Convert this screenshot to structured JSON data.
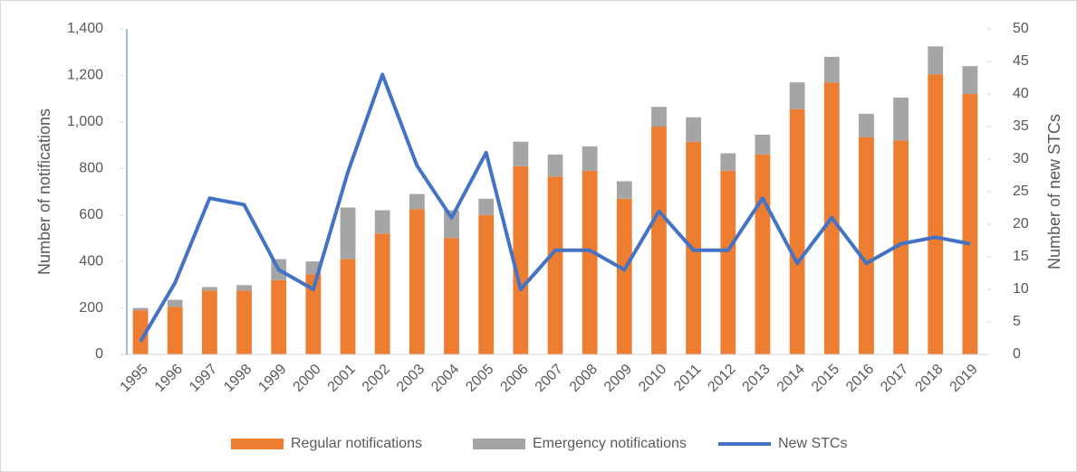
{
  "chart_data": {
    "type": "bar",
    "categories": [
      "1995",
      "1996",
      "1997",
      "1998",
      "1999",
      "2000",
      "2001",
      "2002",
      "2003",
      "2004",
      "2005",
      "2006",
      "2007",
      "2008",
      "2009",
      "2010",
      "2011",
      "2012",
      "2013",
      "2014",
      "2015",
      "2016",
      "2017",
      "2018",
      "2019"
    ],
    "series": [
      {
        "name": "Regular notifications",
        "color": "#ed7d31",
        "stack": true,
        "values": [
          190,
          205,
          275,
          275,
          320,
          345,
          410,
          520,
          625,
          500,
          600,
          810,
          765,
          790,
          670,
          980,
          915,
          790,
          860,
          1055,
          1170,
          935,
          920,
          1205,
          1120
        ]
      },
      {
        "name": "Emergency notifications",
        "color": "#a5a5a5",
        "stack": true,
        "values": [
          10,
          30,
          15,
          23,
          90,
          55,
          222,
          100,
          65,
          120,
          70,
          105,
          95,
          105,
          75,
          85,
          105,
          75,
          85,
          115,
          110,
          100,
          185,
          120,
          120
        ]
      },
      {
        "name": "New STCs",
        "color": "#4472c4",
        "type": "line",
        "axis": "y2",
        "values": [
          2,
          11,
          24,
          23,
          13,
          10,
          28,
          43,
          29,
          21,
          31,
          10,
          16,
          16,
          13,
          22,
          16,
          16,
          24,
          14,
          21,
          14,
          17,
          18,
          17
        ]
      }
    ],
    "ylabel": "Number of notifications",
    "y2label": "Number of new STCs",
    "ylim": [
      0,
      1400
    ],
    "yticks": [
      0,
      200,
      400,
      600,
      800,
      {
        "value": 1000,
        "label": "1,000"
      },
      {
        "value": 1200,
        "label": "1,200"
      },
      {
        "value": 1400,
        "label": "1,400"
      }
    ],
    "y2lim": [
      0,
      50
    ],
    "y2ticks": [
      0,
      5,
      10,
      15,
      20,
      25,
      30,
      35,
      40,
      45,
      50
    ],
    "legend": "bottom"
  }
}
